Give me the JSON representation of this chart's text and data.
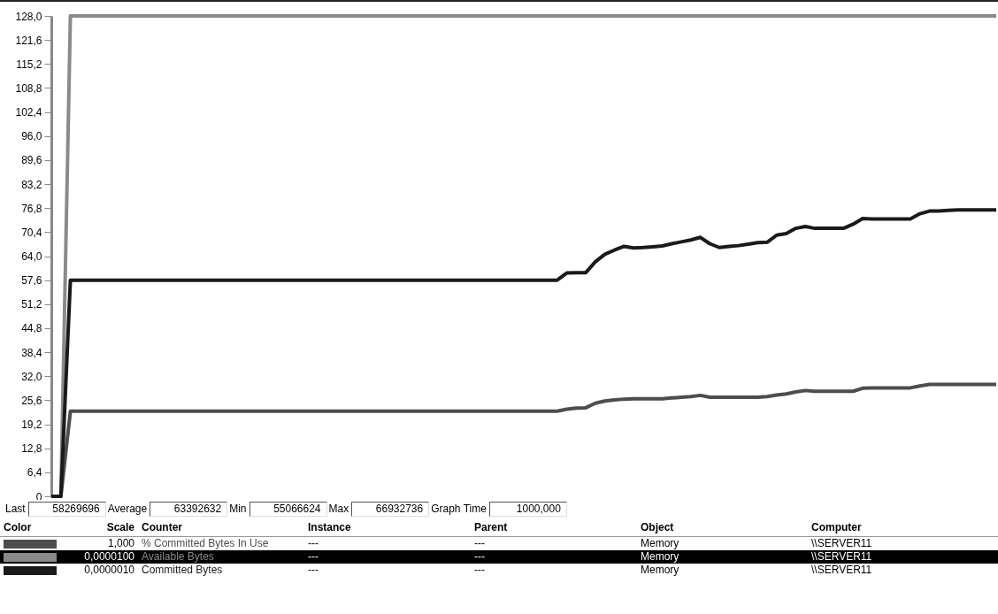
{
  "chart_data": {
    "type": "line",
    "categories": [
      null,
      null,
      null,
      null,
      null,
      null,
      null,
      null,
      null,
      null,
      null,
      null,
      null,
      null,
      null,
      null,
      null,
      null,
      null,
      null,
      null,
      null,
      null,
      null,
      null,
      null,
      null,
      null,
      null,
      null,
      null,
      null,
      null,
      null,
      null,
      null,
      null,
      null,
      null,
      null,
      null,
      null,
      null,
      null,
      null,
      null,
      null,
      null,
      null,
      null,
      null,
      null,
      null,
      null,
      null,
      null,
      null,
      null,
      null,
      null,
      null,
      null,
      null,
      null,
      null,
      null,
      null,
      null,
      null,
      null,
      null,
      null,
      null,
      null,
      null,
      null,
      null,
      null,
      null,
      null,
      null,
      null,
      null,
      null,
      null,
      null,
      null,
      null,
      null,
      null,
      null,
      null,
      null,
      null,
      null,
      null,
      null,
      null,
      null,
      null
    ],
    "series": [
      {
        "name": "% Committed Bytes In Use",
        "color": "#4d4d4d",
        "values": [
          0,
          0,
          22.7,
          22.7,
          22.7,
          22.7,
          22.7,
          22.7,
          22.7,
          22.7,
          22.7,
          22.7,
          22.7,
          22.7,
          22.7,
          22.7,
          22.7,
          22.7,
          22.7,
          22.7,
          22.7,
          22.7,
          22.7,
          22.7,
          22.7,
          22.7,
          22.7,
          22.7,
          22.7,
          22.7,
          22.7,
          22.7,
          22.7,
          22.7,
          22.7,
          22.7,
          22.7,
          22.7,
          22.7,
          22.7,
          22.7,
          22.7,
          22.7,
          22.7,
          22.7,
          22.7,
          22.7,
          22.7,
          22.7,
          22.7,
          22.7,
          22.7,
          22.7,
          22.7,
          23.2,
          23.5,
          23.6,
          24.8,
          25.4,
          25.7,
          25.9,
          26.0,
          26.0,
          26.0,
          26.0,
          26.2,
          26.4,
          26.6,
          26.9,
          26.4,
          26.4,
          26.4,
          26.4,
          26.4,
          26.4,
          26.6,
          27.0,
          27.3,
          27.8,
          28.2,
          28.0,
          28.0,
          28.0,
          28.0,
          28.0,
          28.8,
          28.9,
          28.9,
          28.9,
          28.9,
          28.9,
          29.4,
          29.8,
          29.8,
          29.8,
          29.8,
          29.8,
          29.8,
          29.8,
          29.8
        ]
      },
      {
        "name": "Available Bytes",
        "color": "#8a8a8a",
        "values": [
          0,
          0,
          128,
          128,
          128,
          128,
          128,
          128,
          128,
          128,
          128,
          128,
          128,
          128,
          128,
          128,
          128,
          128,
          128,
          128,
          128,
          128,
          128,
          128,
          128,
          128,
          128,
          128,
          128,
          128,
          128,
          128,
          128,
          128,
          128,
          128,
          128,
          128,
          128,
          128,
          128,
          128,
          128,
          128,
          128,
          128,
          128,
          128,
          128,
          128,
          128,
          128,
          128,
          128,
          128,
          128,
          128,
          128,
          128,
          128,
          128,
          128,
          128,
          128,
          128,
          128,
          128,
          128,
          128,
          128,
          128,
          128,
          128,
          128,
          128,
          128,
          128,
          128,
          128,
          128,
          128,
          128,
          128,
          128,
          128,
          128,
          128,
          128,
          128,
          128,
          128,
          128,
          128,
          128,
          128,
          128,
          128,
          128,
          128,
          128
        ]
      },
      {
        "name": "Committed Bytes",
        "color": "#1a1a1a",
        "values": [
          0,
          0,
          57.6,
          57.6,
          57.6,
          57.6,
          57.6,
          57.6,
          57.6,
          57.6,
          57.6,
          57.6,
          57.6,
          57.6,
          57.6,
          57.6,
          57.6,
          57.6,
          57.6,
          57.6,
          57.6,
          57.6,
          57.6,
          57.6,
          57.6,
          57.6,
          57.6,
          57.6,
          57.6,
          57.6,
          57.6,
          57.6,
          57.6,
          57.6,
          57.6,
          57.6,
          57.6,
          57.6,
          57.6,
          57.6,
          57.6,
          57.6,
          57.6,
          57.6,
          57.6,
          57.6,
          57.6,
          57.6,
          57.6,
          57.6,
          57.6,
          57.6,
          57.6,
          57.6,
          59.5,
          59.6,
          59.6,
          62.5,
          64.5,
          65.6,
          66.6,
          66.2,
          66.3,
          66.5,
          66.7,
          67.3,
          67.8,
          68.3,
          69.0,
          67.3,
          66.3,
          66.6,
          66.8,
          67.2,
          67.6,
          67.7,
          69.6,
          70.0,
          71.4,
          71.9,
          71.4,
          71.4,
          71.4,
          71.4,
          72.5,
          74.0,
          73.9,
          73.9,
          73.9,
          73.9,
          73.9,
          75.3,
          76.0,
          76.0,
          76.2,
          76.3,
          76.3,
          76.3,
          76.3,
          76.3
        ]
      }
    ],
    "ylim": [
      0,
      128
    ],
    "yticks": [
      0,
      {
        "value": 6.4,
        "label": "6,4"
      },
      {
        "value": 12.8,
        "label": "12,8"
      },
      {
        "value": 19.2,
        "label": "19,2"
      },
      {
        "value": 25.6,
        "label": "25,6"
      },
      {
        "value": 32,
        "label": "32,0"
      },
      {
        "value": 38.4,
        "label": "38,4"
      },
      {
        "value": 44.8,
        "label": "44,8"
      },
      {
        "value": 51.2,
        "label": "51,2"
      },
      {
        "value": 57.6,
        "label": "57,6"
      },
      {
        "value": 64,
        "label": "64,0"
      },
      {
        "value": 70.4,
        "label": "70,4"
      },
      {
        "value": 76.8,
        "label": "76,8"
      },
      {
        "value": 83.2,
        "label": "83,2"
      },
      {
        "value": 89.6,
        "label": "89,6"
      },
      {
        "value": 96,
        "label": "96,0"
      },
      {
        "value": 102.4,
        "label": "102,4"
      },
      {
        "value": 108.8,
        "label": "108,8"
      },
      {
        "value": 115.2,
        "label": "115,2"
      },
      {
        "value": 121.6,
        "label": "121,6"
      },
      {
        "value": 128,
        "label": "128,0"
      }
    ],
    "grid": false,
    "legend": "bottom",
    "tick_labels": "y",
    "line_style": "solid",
    "annotations": [
      "Last",
      "58269696",
      "Average",
      "63392632",
      "Min",
      "55066624",
      "Max",
      "66932736",
      "Graph Time",
      "1000,000",
      "Color",
      "Scale",
      "Counter",
      "Instance",
      "Parent",
      "Object",
      "Computer",
      "1,000",
      "---",
      "---",
      "Memory",
      "\\\\SERVER11",
      "0,0000100",
      "---",
      "---",
      "Memory",
      "\\\\SERVER11",
      "0,0000010",
      "---",
      "---",
      "Memory",
      "\\\\SERVER11"
    ]
  }
}
